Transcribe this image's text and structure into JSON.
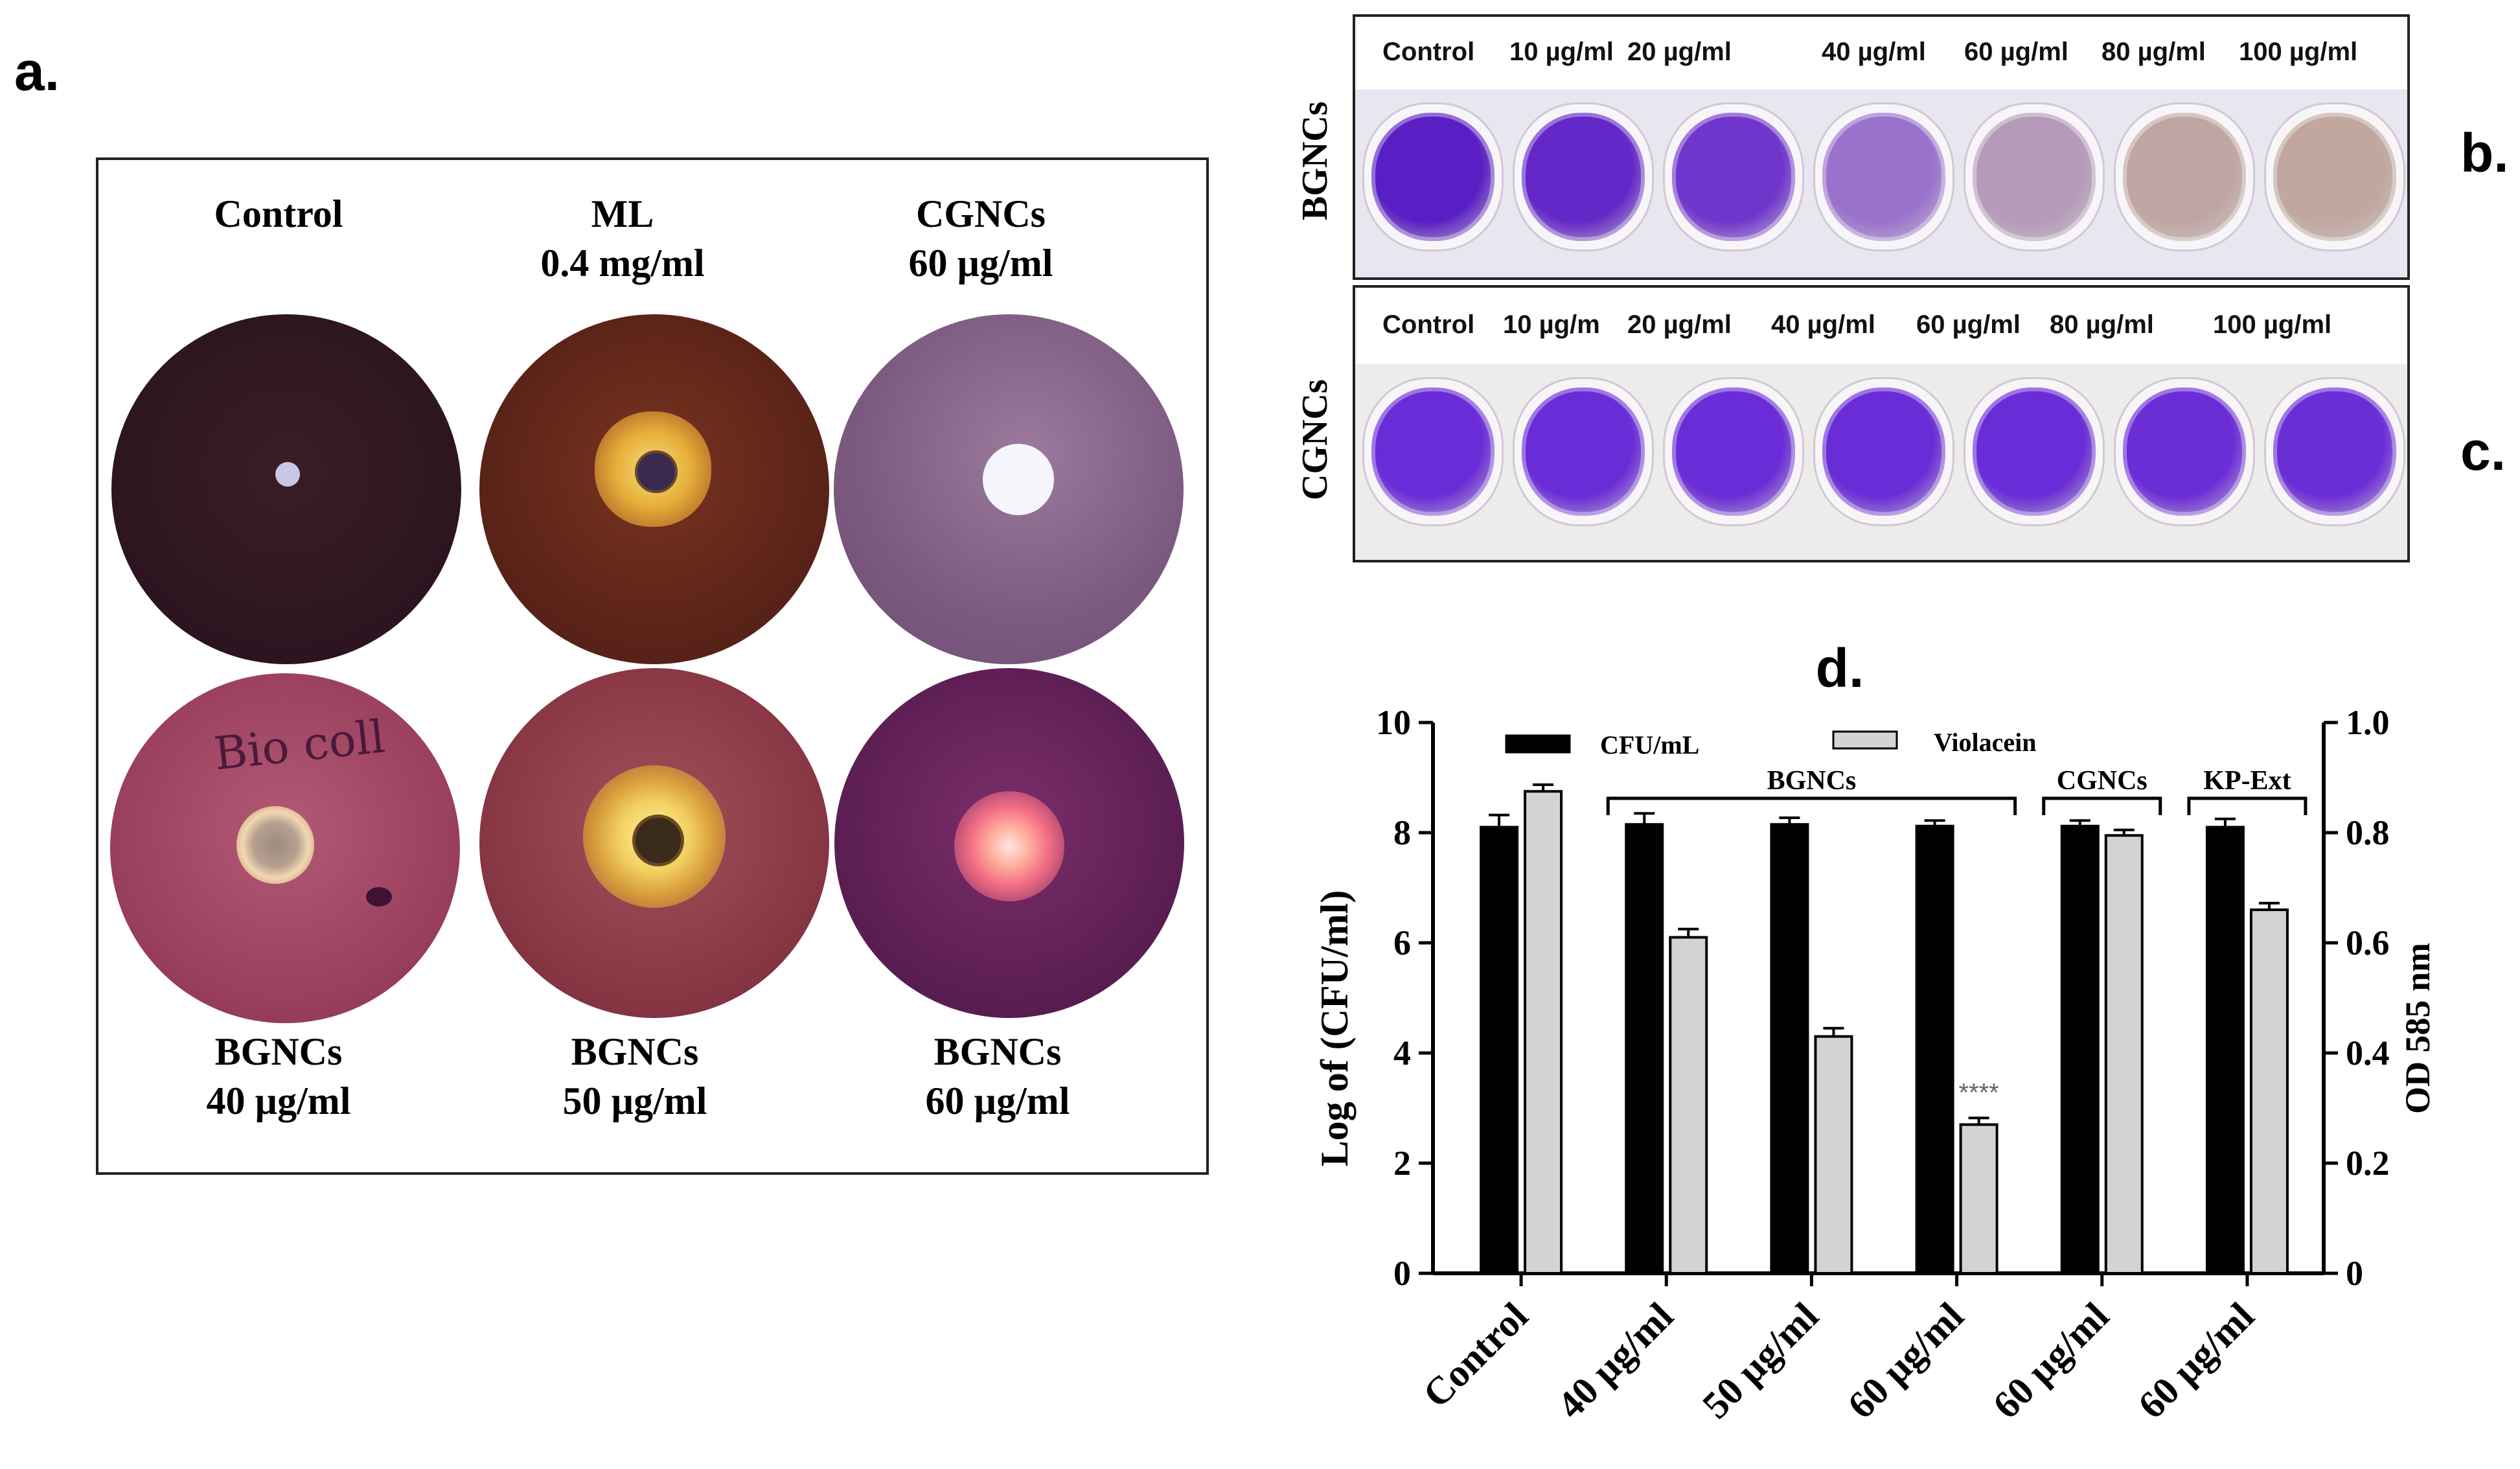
{
  "panel_letters": {
    "a": "a.",
    "b": "b.",
    "c": "c.",
    "d": "d."
  },
  "panel_a": {
    "plates": [
      {
        "title": "Control",
        "subtitle": "",
        "description": "dark purple lawn, small disc, no zone"
      },
      {
        "title": "ML",
        "subtitle": "0.4 mg/ml",
        "description": "orange clear zone"
      },
      {
        "title": "CGNCs",
        "subtitle": "60 µg/ml",
        "description": "purple lawn, white disc"
      },
      {
        "title": "BGNCs",
        "subtitle": "40 µg/ml",
        "description": "small pale zone"
      },
      {
        "title": "BGNCs",
        "subtitle": "50 µg/ml",
        "description": "yellow zone"
      },
      {
        "title": "BGNCs",
        "subtitle": "60 µg/ml",
        "description": "bright pink halo"
      }
    ],
    "plate_handwriting": "Bio coll"
  },
  "panel_b": {
    "side_label": "BGNCs",
    "concentrations": [
      "Control",
      "10 µg/ml",
      "20 µg/ml",
      "40 µg/ml",
      "60 µg/ml",
      "80 µg/ml",
      "100 µg/ml"
    ],
    "well_colors": [
      "#5a1fc4",
      "#6428c8",
      "#7036cc",
      "#9a72cc",
      "#b59ab9",
      "#c0a6a2",
      "#c1a79f"
    ]
  },
  "panel_c": {
    "side_label": "CGNCs",
    "concentrations": [
      "Control",
      "10 µg/m",
      "20 µg/ml",
      "40 µg/ml",
      "60 µg/ml",
      "80 µg/ml",
      "100 µg/ml"
    ],
    "well_colors": [
      "#6a2cd6",
      "#6a2cd6",
      "#6a2cd6",
      "#6a2cd6",
      "#6a2cd6",
      "#6b2dd6",
      "#6b2dd6"
    ]
  },
  "chart_data": {
    "type": "bar",
    "title": "d.",
    "categories": [
      "Control",
      "40 µg/ml",
      "50 µg/ml",
      "60 µg/ml",
      "60 µg/ml",
      "60 µg/ml"
    ],
    "series": [
      {
        "name": "CFU/mL",
        "axis": "left",
        "color": "#000000",
        "values": [
          8.1,
          8.15,
          8.15,
          8.12,
          8.12,
          8.1
        ],
        "errors": [
          0.22,
          0.2,
          0.12,
          0.1,
          0.1,
          0.15
        ]
      },
      {
        "name": "Violacein",
        "axis": "right",
        "color": "#d3d3d3",
        "values": [
          0.875,
          0.61,
          0.43,
          0.27,
          0.795,
          0.66
        ],
        "errors": [
          0.012,
          0.015,
          0.015,
          0.012,
          0.01,
          0.012
        ]
      }
    ],
    "ylabel": "Log of (CFU/ml)",
    "ylabel_right": "OD 585 nm",
    "ylim": [
      0,
      10
    ],
    "ylim_right": [
      0,
      1.0
    ],
    "yticks": [
      "0",
      "2",
      "4",
      "6",
      "8",
      "10"
    ],
    "yticks_right": [
      "0",
      "0.2",
      "0.4",
      "0.6",
      "0.8",
      "1.0"
    ],
    "groups": [
      {
        "label": "BGNCs",
        "from": 1,
        "to": 3
      },
      {
        "label": "CGNCs",
        "from": 4,
        "to": 4
      },
      {
        "label": "KP-Ext",
        "from": 5,
        "to": 5
      }
    ],
    "annotations": [
      {
        "text": "****",
        "category": 3,
        "series": "Violacein"
      }
    ]
  }
}
